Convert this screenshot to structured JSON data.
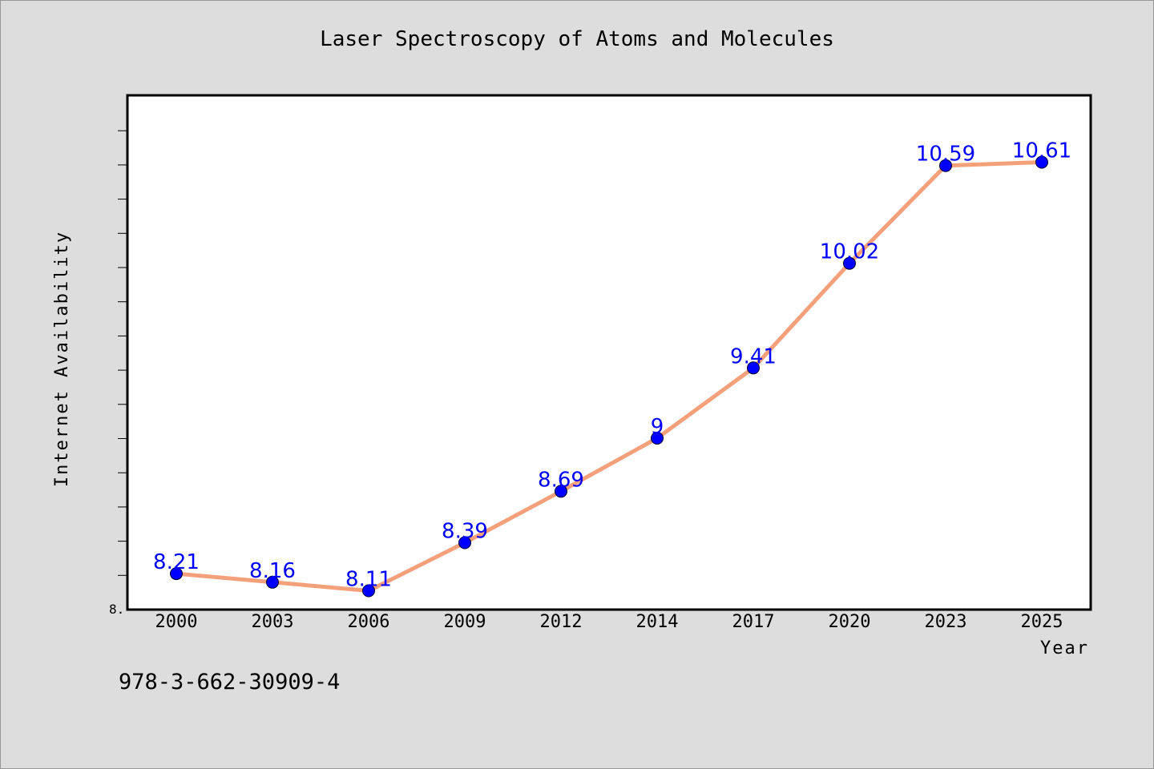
{
  "colors": {
    "background": "#dddddd",
    "plot_background": "#ffffff",
    "line": "#f4a07a",
    "marker": "#0000ff",
    "data_label": "#0000ff"
  },
  "footer": {
    "isbn": "978-3-662-30909-4"
  },
  "chart_data": {
    "type": "line",
    "title": "Laser Spectroscopy of Atoms and Molecules",
    "xlabel": "Year",
    "ylabel": "Internet Availability",
    "categories": [
      "2000",
      "2003",
      "2006",
      "2009",
      "2012",
      "2014",
      "2017",
      "2020",
      "2023",
      "2025"
    ],
    "series": [
      {
        "values": [
          8.21,
          8.16,
          8.11,
          8.39,
          8.69,
          9,
          9.41,
          10.02,
          10.59,
          10.61
        ],
        "labels": [
          "8.21",
          "8.16",
          "8.11",
          "8.39",
          "8.69",
          "9",
          "9.41",
          "10.02",
          "10.59",
          "10.61"
        ]
      }
    ],
    "ylim": [
      8.0,
      11.0
    ],
    "y_tick_label": "8.",
    "grid": false,
    "legend": "none",
    "marker": "circle"
  }
}
